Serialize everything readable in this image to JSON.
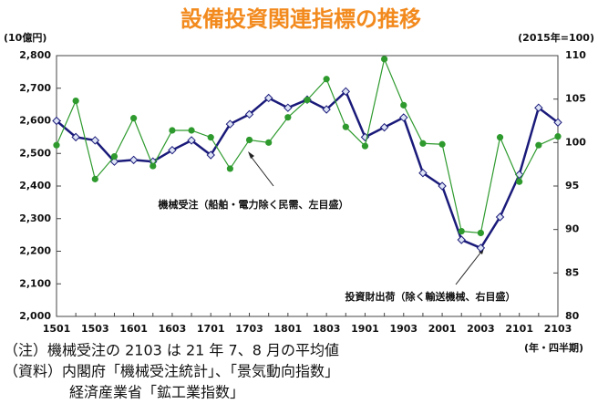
{
  "chart_data": {
    "type": "line",
    "title": "設備投資関連指標の推移",
    "y_label": "(10億円)",
    "y2_label": "(2015年=100)",
    "x_label": "(年・四半期)",
    "categories": [
      "1501",
      null,
      "1503",
      null,
      "1601",
      null,
      "1603",
      null,
      "1701",
      null,
      "1703",
      null,
      "1801",
      null,
      "1803",
      null,
      "1901",
      null,
      "1903",
      null,
      "2001",
      null,
      "2003",
      null,
      "2101",
      null,
      "2103"
    ],
    "series": [
      {
        "name": "機械受注（船舶・電力除く民需、左目盛）",
        "color": "#1a1a7a",
        "axis": "y",
        "values": [
          2600,
          2550,
          2540,
          2475,
          2480,
          2475,
          2510,
          2540,
          2495,
          2590,
          2620,
          2670,
          2640,
          2665,
          2635,
          2690,
          2550,
          2580,
          2610,
          2440,
          2400,
          2235,
          2210,
          2305,
          2435,
          2640,
          2595
        ]
      },
      {
        "name": "投資財出荷（除く輸送機械、右目盛）",
        "color": "#2e9a2e",
        "axis": "y2",
        "values": [
          99.7,
          104.8,
          95.8,
          98.4,
          102.8,
          97.3,
          101.4,
          101.4,
          100.6,
          97.0,
          100.3,
          100.0,
          102.9,
          104.9,
          107.3,
          101.8,
          99.6,
          109.6,
          104.3,
          99.9,
          99.8,
          89.8,
          89.6,
          100.6,
          95.5,
          99.7,
          100.7
        ]
      }
    ],
    "ylim": [
      2000,
      2800
    ],
    "yticks": [
      {
        "value": 2000,
        "label": "2,000"
      },
      {
        "value": 2100,
        "label": "2,100"
      },
      {
        "value": 2200,
        "label": "2,200"
      },
      {
        "value": 2300,
        "label": "2,300"
      },
      {
        "value": 2400,
        "label": "2,400"
      },
      {
        "value": 2500,
        "label": "2,500"
      },
      {
        "value": 2600,
        "label": "2,600"
      },
      {
        "value": 2700,
        "label": "2,700"
      },
      {
        "value": 2800,
        "label": "2,800"
      }
    ],
    "y2lim": [
      80,
      110
    ],
    "y2ticks": [
      80,
      85,
      90,
      95,
      100,
      105,
      110
    ],
    "notes": [
      "（注）機械受注の 2103 は 21 年 7、8 月の平均値",
      "（資料）内閣府「機械受注統計」、「景気動向指数」",
      "経済産業省「鉱工業指数」"
    ]
  }
}
